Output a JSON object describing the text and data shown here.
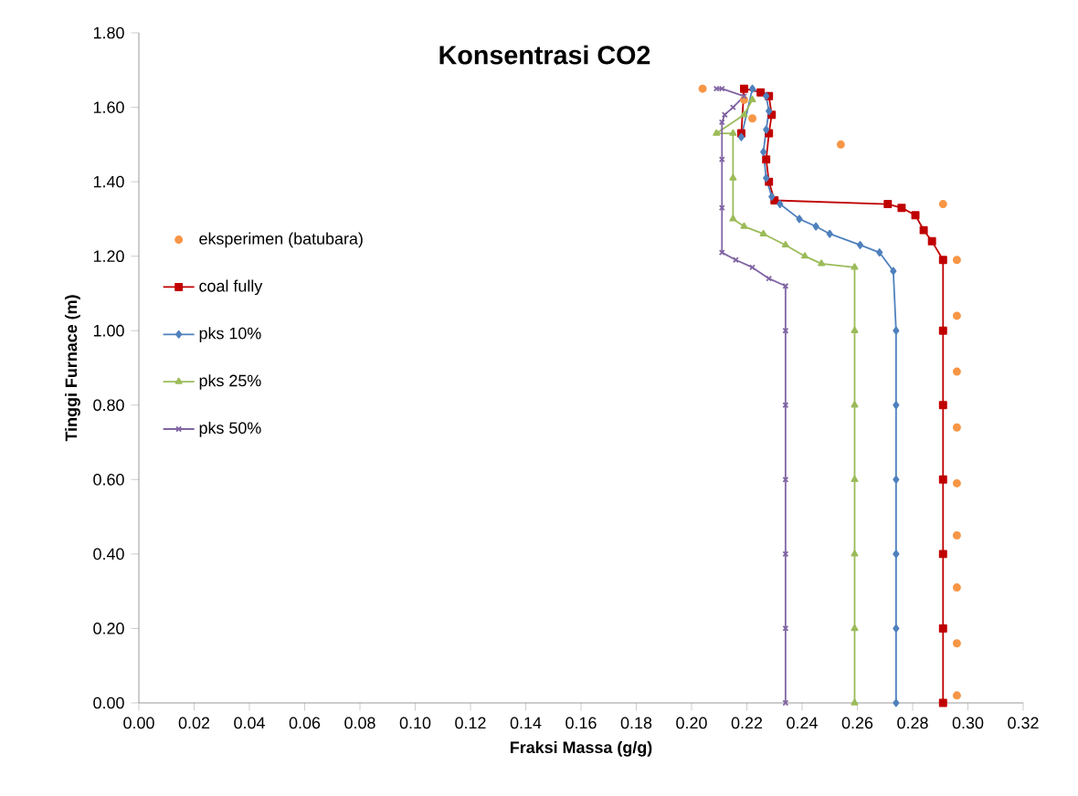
{
  "chart_data": {
    "type": "line",
    "title": "Konsentrasi CO2",
    "xlabel": "Fraksi Massa  (g/g)",
    "ylabel": "Tinggi Furnace  (m)",
    "xlim": [
      0,
      0.32
    ],
    "ylim": [
      0,
      1.8
    ],
    "xticks": [
      {
        "value": 0,
        "label": "0.00"
      },
      {
        "value": 0.02,
        "label": "0.02"
      },
      {
        "value": 0.04,
        "label": "0.04"
      },
      {
        "value": 0.06,
        "label": "0.06"
      },
      {
        "value": 0.08,
        "label": "0.08"
      },
      {
        "value": 0.1,
        "label": "0.10"
      },
      {
        "value": 0.12,
        "label": "0.12"
      },
      {
        "value": 0.14,
        "label": "0.14"
      },
      {
        "value": 0.16,
        "label": "0.16"
      },
      {
        "value": 0.18,
        "label": "0.18"
      },
      {
        "value": 0.2,
        "label": "0.20"
      },
      {
        "value": 0.22,
        "label": "0.22"
      },
      {
        "value": 0.24,
        "label": "0.24"
      },
      {
        "value": 0.26,
        "label": "0.26"
      },
      {
        "value": 0.28,
        "label": "0.28"
      },
      {
        "value": 0.3,
        "label": "0.30"
      },
      {
        "value": 0.32,
        "label": "0.32"
      }
    ],
    "yticks": [
      {
        "value": 0,
        "label": "0.00"
      },
      {
        "value": 0.2,
        "label": "0.20"
      },
      {
        "value": 0.4,
        "label": "0.40"
      },
      {
        "value": 0.6,
        "label": "0.60"
      },
      {
        "value": 0.8,
        "label": "0.80"
      },
      {
        "value": 1.0,
        "label": "1.00"
      },
      {
        "value": 1.2,
        "label": "1.20"
      },
      {
        "value": 1.4,
        "label": "1.40"
      },
      {
        "value": 1.6,
        "label": "1.60"
      },
      {
        "value": 1.8,
        "label": "1.80"
      }
    ],
    "legend": "left",
    "series": [
      {
        "name": "eksperimen (batubara)",
        "type": "scatter",
        "marker": "circle",
        "color": "#f79646",
        "x": [
          0.204,
          0.219,
          0.222,
          0.254,
          0.291,
          0.296,
          0.296,
          0.296,
          0.296,
          0.296,
          0.296,
          0.296,
          0.296,
          0.296
        ],
        "values": [
          1.65,
          1.62,
          1.57,
          1.5,
          1.34,
          1.19,
          1.04,
          0.89,
          0.74,
          0.59,
          0.45,
          0.31,
          0.16,
          0.02
        ]
      },
      {
        "name": "coal fully",
        "marker": "square",
        "color": "#c00000",
        "x": [
          0.291,
          0.291,
          0.291,
          0.291,
          0.291,
          0.291,
          0.291,
          0.287,
          0.284,
          0.281,
          0.276,
          0.271,
          0.23,
          0.228,
          0.227,
          0.228,
          0.229,
          0.228,
          0.225,
          0.219,
          0.218
        ],
        "values": [
          0,
          0.2,
          0.4,
          0.6,
          0.8,
          1.0,
          1.19,
          1.24,
          1.27,
          1.31,
          1.33,
          1.34,
          1.35,
          1.4,
          1.46,
          1.53,
          1.58,
          1.63,
          1.64,
          1.65,
          1.53
        ]
      },
      {
        "name": "pks 10%",
        "marker": "diamond",
        "color": "#4f81bd",
        "x": [
          0.274,
          0.274,
          0.274,
          0.274,
          0.274,
          0.274,
          0.273,
          0.268,
          0.261,
          0.25,
          0.245,
          0.239,
          0.232,
          0.229,
          0.227,
          0.226,
          0.227,
          0.228,
          0.227,
          0.222,
          0.218
        ],
        "values": [
          0,
          0.2,
          0.4,
          0.6,
          0.8,
          1.0,
          1.16,
          1.21,
          1.23,
          1.26,
          1.28,
          1.3,
          1.34,
          1.36,
          1.41,
          1.48,
          1.54,
          1.59,
          1.63,
          1.65,
          1.52
        ]
      },
      {
        "name": "pks 25%",
        "marker": "triangle",
        "color": "#9bbb59",
        "x": [
          0.259,
          0.259,
          0.259,
          0.259,
          0.259,
          0.259,
          0.259,
          0.247,
          0.241,
          0.234,
          0.226,
          0.219,
          0.215,
          0.215,
          0.215,
          0.209,
          0.219,
          0.222
        ],
        "values": [
          0,
          0.2,
          0.4,
          0.6,
          0.8,
          1.0,
          1.17,
          1.18,
          1.2,
          1.23,
          1.26,
          1.28,
          1.3,
          1.41,
          1.53,
          1.53,
          1.58,
          1.62
        ]
      },
      {
        "name": "pks 50%",
        "marker": "cross",
        "color": "#8064a2",
        "x": [
          0.234,
          0.234,
          0.234,
          0.234,
          0.234,
          0.234,
          0.234,
          0.228,
          0.222,
          0.216,
          0.211,
          0.211,
          0.211,
          0.211,
          0.212,
          0.215,
          0.219,
          0.211,
          0.209
        ],
        "values": [
          0,
          0.2,
          0.4,
          0.6,
          0.8,
          1.0,
          1.12,
          1.14,
          1.17,
          1.19,
          1.21,
          1.33,
          1.46,
          1.56,
          1.58,
          1.6,
          1.63,
          1.65,
          1.65
        ]
      }
    ]
  }
}
